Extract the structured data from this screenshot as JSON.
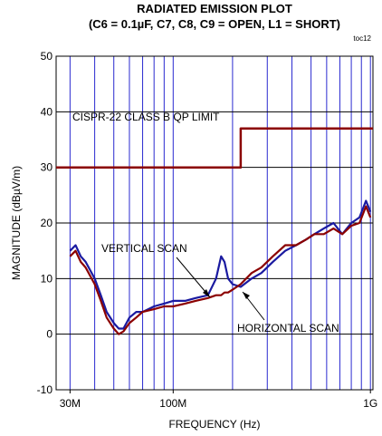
{
  "chart_data": {
    "type": "line",
    "title": "RADIATED EMISSION PLOT",
    "subtitle": "(C6 = 0.1µF, C7, C8, C9 = OPEN, L1 = SHORT)",
    "corner_label": "toc12",
    "x_label": "FREQUENCY (Hz)",
    "y_label": "MAGNITUDE (dBµV/m)",
    "log_x": true,
    "grid": true,
    "xlim": [
      25500000,
      1030000000
    ],
    "ylim": [
      -10,
      50
    ],
    "yticks": [
      -10,
      0,
      10,
      20,
      30,
      40,
      50
    ],
    "xticks": [
      {
        "value": 30000000,
        "label": "30M"
      },
      {
        "value": 100000000,
        "label": "100M"
      },
      {
        "value": 1000000000,
        "label": "1G"
      }
    ],
    "xgrid": [
      30000000,
      40000000,
      50000000,
      60000000,
      70000000,
      80000000,
      90000000,
      100000000,
      200000000,
      300000000,
      400000000,
      500000000,
      600000000,
      700000000,
      800000000,
      900000000,
      1000000000
    ],
    "annotations": [
      "CISPR-22 CLASS B QP LIMIT",
      "VERTICAL SCAN",
      "HORIZONTAL SCAN"
    ],
    "series": [
      {
        "name": "CISPR-22 CLASS B QP LIMIT",
        "color": "#8b0000",
        "x": [
          25500000,
          220000000,
          220000000,
          1030000000
        ],
        "values": [
          30,
          30,
          37,
          37
        ]
      },
      {
        "name": "VERTICAL SCAN",
        "color": "#1a1aa0",
        "x": [
          30000000,
          32000000,
          34000000,
          36000000,
          40000000,
          43000000,
          46000000,
          50000000,
          53000000,
          56000000,
          60000000,
          65000000,
          70000000,
          80000000,
          90000000,
          100000000,
          115000000,
          130000000,
          150000000,
          165000000,
          175000000,
          182000000,
          190000000,
          200000000,
          220000000,
          250000000,
          280000000,
          320000000,
          370000000,
          420000000,
          470000000,
          520000000,
          580000000,
          650000000,
          720000000,
          800000000,
          880000000,
          950000000,
          1000000000
        ],
        "values": [
          15,
          16,
          14,
          13,
          10,
          7,
          4,
          2,
          1,
          1,
          3,
          4,
          4,
          5,
          5.5,
          6,
          6,
          6.5,
          7,
          10,
          14,
          13,
          10,
          9,
          8.5,
          10,
          11,
          13,
          15,
          16,
          17,
          18,
          19,
          20,
          18,
          20,
          21,
          24,
          22
        ]
      },
      {
        "name": "HORIZONTAL SCAN",
        "color": "#8b0000",
        "x": [
          30000000,
          32000000,
          34000000,
          36000000,
          40000000,
          43000000,
          46000000,
          50000000,
          53000000,
          56000000,
          60000000,
          65000000,
          70000000,
          80000000,
          90000000,
          100000000,
          115000000,
          130000000,
          150000000,
          165000000,
          175000000,
          182000000,
          190000000,
          200000000,
          220000000,
          250000000,
          280000000,
          320000000,
          370000000,
          420000000,
          470000000,
          520000000,
          580000000,
          650000000,
          720000000,
          800000000,
          880000000,
          950000000,
          1000000000
        ],
        "values": [
          14,
          15,
          13,
          12,
          9,
          6,
          3,
          1,
          0,
          0.5,
          2,
          3,
          4,
          4.5,
          5,
          5,
          5.5,
          6,
          6.5,
          7,
          7,
          7.5,
          7.5,
          8,
          9,
          11,
          12,
          14,
          16,
          16,
          17,
          18,
          18,
          19,
          18,
          19.5,
          20,
          23,
          21
        ]
      }
    ]
  }
}
